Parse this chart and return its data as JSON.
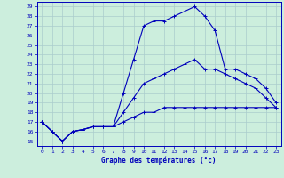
{
  "xlabel": "Graphe des températures (°c)",
  "bg_color": "#cceedd",
  "line_color": "#0000bb",
  "grid_color": "#aacccc",
  "ylim": [
    14.5,
    29.5
  ],
  "xlim": [
    -0.5,
    23.5
  ],
  "yticks": [
    15,
    16,
    17,
    18,
    19,
    20,
    21,
    22,
    23,
    24,
    25,
    26,
    27,
    28,
    29
  ],
  "xticks": [
    0,
    1,
    2,
    3,
    4,
    5,
    6,
    7,
    8,
    9,
    10,
    11,
    12,
    13,
    14,
    15,
    16,
    17,
    18,
    19,
    20,
    21,
    22,
    23
  ],
  "series": [
    {
      "x": [
        0,
        1,
        2,
        3,
        4,
        5,
        6,
        7,
        8,
        9,
        10,
        11,
        12,
        13,
        14,
        15,
        16,
        17,
        18,
        19,
        20,
        21,
        22,
        23
      ],
      "y": [
        17.0,
        16.0,
        15.0,
        16.0,
        16.2,
        16.5,
        16.5,
        16.5,
        20.0,
        23.5,
        27.0,
        27.5,
        27.5,
        28.0,
        28.5,
        29.0,
        28.0,
        26.5,
        22.5,
        22.5,
        22.0,
        21.5,
        20.5,
        19.0
      ]
    },
    {
      "x": [
        0,
        1,
        2,
        3,
        4,
        5,
        6,
        7,
        8,
        9,
        10,
        11,
        12,
        13,
        14,
        15,
        16,
        17,
        18,
        19,
        20,
        21,
        22,
        23
      ],
      "y": [
        17.0,
        16.0,
        15.0,
        16.0,
        16.2,
        16.5,
        16.5,
        16.5,
        18.0,
        19.5,
        21.0,
        21.5,
        22.0,
        22.5,
        23.0,
        23.5,
        22.5,
        22.5,
        22.0,
        21.5,
        21.0,
        20.5,
        19.5,
        18.5
      ]
    },
    {
      "x": [
        0,
        1,
        2,
        3,
        4,
        5,
        6,
        7,
        8,
        9,
        10,
        11,
        12,
        13,
        14,
        15,
        16,
        17,
        18,
        19,
        20,
        21,
        22,
        23
      ],
      "y": [
        17.0,
        16.0,
        15.0,
        16.0,
        16.2,
        16.5,
        16.5,
        16.5,
        17.0,
        17.5,
        18.0,
        18.0,
        18.5,
        18.5,
        18.5,
        18.5,
        18.5,
        18.5,
        18.5,
        18.5,
        18.5,
        18.5,
        18.5,
        18.5
      ]
    }
  ]
}
